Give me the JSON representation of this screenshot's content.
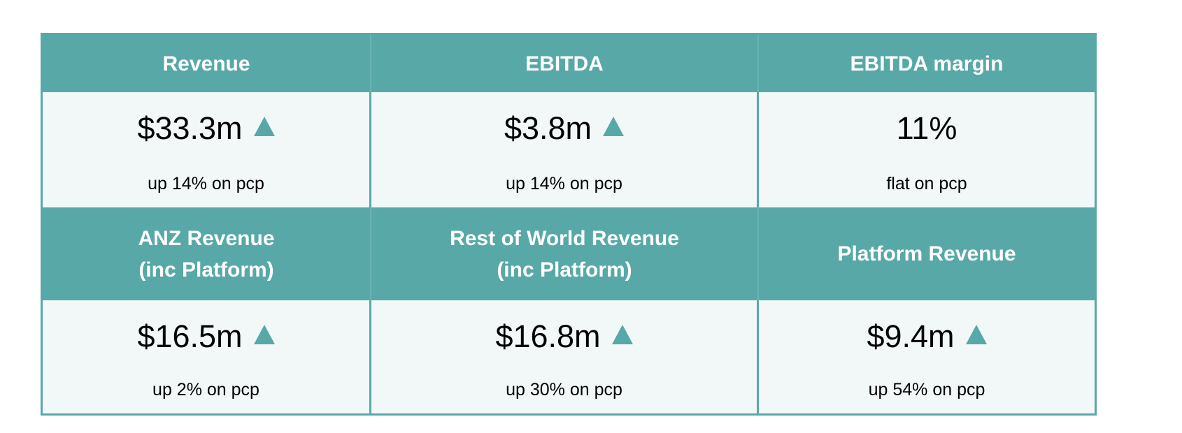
{
  "colors": {
    "header_bg": "#58a8a8",
    "cell_bg": "#f2f8f8",
    "up_arrow": "#58a8a8"
  },
  "metrics": [
    {
      "header": "Revenue",
      "value": "$33.3m",
      "trend": "up",
      "change": "up 14% on pcp"
    },
    {
      "header": "EBITDA",
      "value": "$3.8m",
      "trend": "up",
      "change": "up 14% on pcp"
    },
    {
      "header": "EBITDA margin",
      "value": "11%",
      "trend": "flat",
      "change": "flat on pcp"
    },
    {
      "header": "ANZ Revenue\n(inc Platform)",
      "value": "$16.5m",
      "trend": "up",
      "change": "up 2% on pcp"
    },
    {
      "header": "Rest of World Revenue\n(inc Platform)",
      "value": "$16.8m",
      "trend": "up",
      "change": "up 30% on pcp"
    },
    {
      "header": "Platform Revenue",
      "value": "$9.4m",
      "trend": "up",
      "change": "up 54% on pcp"
    }
  ]
}
